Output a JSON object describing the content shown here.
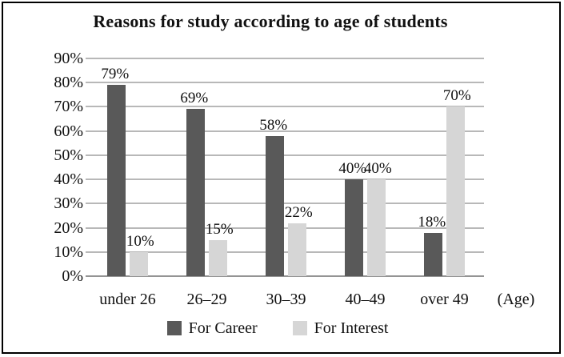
{
  "title": "Reasons for study according to age of students",
  "chart_data": {
    "type": "bar",
    "categories": [
      "under 26",
      "26–29",
      "30–39",
      "40–49",
      "over 49"
    ],
    "series": [
      {
        "name": "For Career",
        "color": "#595959",
        "values": [
          79,
          69,
          58,
          40,
          18
        ]
      },
      {
        "name": "For Interest",
        "color": "#d6d6d6",
        "values": [
          10,
          15,
          22,
          40,
          70
        ]
      }
    ],
    "data_labels": true,
    "value_suffix": "%",
    "xlabel": "(Age)",
    "ylabel": "",
    "ylim": [
      0,
      90
    ],
    "ytick_step": 10,
    "ytick_suffix": "%",
    "grid": true,
    "gridline_color": "#b8b8b8",
    "axis_line_color": "#949494",
    "legend_position": "bottom",
    "text_color": "#111111",
    "frame_border_color": "#000000"
  }
}
